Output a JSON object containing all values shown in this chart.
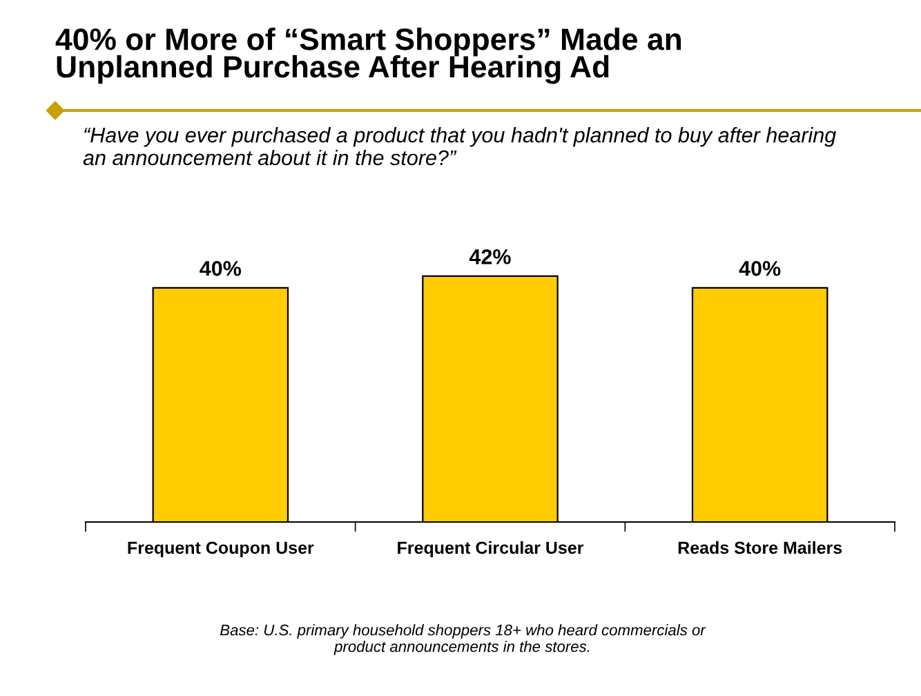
{
  "chart_data": {
    "type": "bar",
    "title": "40% or More of “Smart Shoppers” Made an\nUnplanned Purchase After Hearing Ad",
    "subtitle": "“Have you ever purchased a product that you hadn't planned to buy after hearing\nan announcement about it in the store?”",
    "categories": [
      "Frequent Coupon User",
      "Frequent Circular User",
      "Reads Store Mailers"
    ],
    "values": [
      40,
      42,
      40
    ],
    "color": "#ffcc00",
    "value_labels": [
      "40%",
      "42%",
      "40%"
    ],
    "grid": false,
    "legend": false,
    "annotations": [
      "Base: U.S. primary household shoppers 18+ who heard commercials or\nproduct announcements in the stores."
    ]
  }
}
